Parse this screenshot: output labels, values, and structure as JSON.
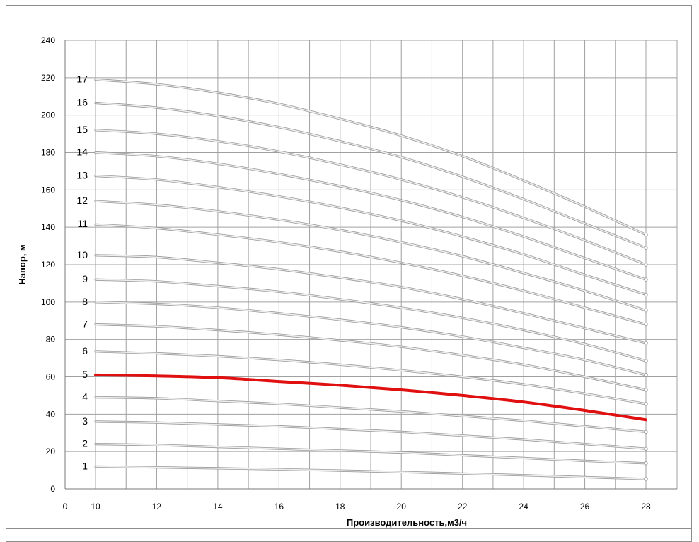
{
  "chart_data": {
    "type": "line",
    "xlabel": "Производительность,м3/ч",
    "ylabel": "Напор, м",
    "xlim": [
      0,
      28
    ],
    "ylim": [
      0,
      240
    ],
    "x_ticks": [
      0,
      10,
      12,
      14,
      16,
      18,
      20,
      22,
      24,
      26,
      28
    ],
    "y_ticks": [
      0,
      20,
      40,
      60,
      80,
      100,
      120,
      140,
      160,
      180,
      200,
      220,
      240
    ],
    "grid": true,
    "colors": {
      "curve": "#c8c8c8",
      "highlight": "#e01010",
      "grid": "#a0a0a0"
    },
    "x": [
      10,
      12,
      14,
      16,
      18,
      20,
      22,
      24,
      26,
      28
    ],
    "series": [
      {
        "name": "1",
        "values": [
          12,
          11.5,
          11,
          10.5,
          9.8,
          9,
          8.2,
          7.3,
          6.3,
          5.3
        ]
      },
      {
        "name": "2",
        "values": [
          24,
          23.5,
          22.5,
          21.5,
          20.5,
          19.5,
          18,
          16.5,
          15,
          13.7
        ]
      },
      {
        "name": "3",
        "values": [
          36,
          35.5,
          34.5,
          33.5,
          32,
          30.5,
          28.5,
          26.5,
          24,
          21.5
        ]
      },
      {
        "name": "4",
        "values": [
          49,
          48.5,
          47,
          45.5,
          43.5,
          41.5,
          39,
          36.5,
          33.5,
          30.5
        ]
      },
      {
        "name": "5",
        "values": [
          61,
          60.5,
          59.5,
          57.5,
          55.5,
          53,
          50,
          46.5,
          42,
          37
        ]
      },
      {
        "name": "6",
        "values": [
          73.5,
          72.5,
          71,
          69,
          66.5,
          63.5,
          60,
          56,
          51,
          45.5
        ]
      },
      {
        "name": "7",
        "values": [
          88,
          87,
          85,
          82.5,
          79.5,
          76,
          71.5,
          66.5,
          60,
          53
        ]
      },
      {
        "name": "8",
        "values": [
          100,
          99,
          97,
          94,
          90.5,
          86.5,
          81.5,
          75.5,
          69,
          61
        ]
      },
      {
        "name": "9",
        "values": [
          112,
          111,
          108.5,
          105.5,
          101.5,
          97,
          91.5,
          85,
          77.5,
          68.5
        ]
      },
      {
        "name": "10",
        "values": [
          125,
          124,
          121,
          117.5,
          113,
          108,
          101.5,
          94,
          86,
          78
        ]
      },
      {
        "name": "11",
        "values": [
          141.5,
          139.5,
          136,
          132,
          127,
          121,
          114,
          106,
          97,
          88
        ]
      },
      {
        "name": "12",
        "values": [
          154,
          152,
          148.5,
          144,
          138.5,
          132,
          124.5,
          115.5,
          106,
          95.5
        ]
      },
      {
        "name": "13",
        "values": [
          167.5,
          165.5,
          161.5,
          156.5,
          150.5,
          143.5,
          135,
          125.5,
          114.5,
          104
        ]
      },
      {
        "name": "14",
        "values": [
          180,
          178,
          174,
          168.5,
          162,
          154.5,
          145.5,
          135,
          123.5,
          112
        ]
      },
      {
        "name": "15",
        "values": [
          192,
          190,
          186,
          180.5,
          173.5,
          165.5,
          156,
          145,
          133,
          120
        ]
      },
      {
        "name": "16",
        "values": [
          206.5,
          204,
          199.5,
          193.5,
          186,
          177.5,
          167,
          155,
          142,
          129
        ]
      },
      {
        "name": "17",
        "values": [
          219,
          216.5,
          212,
          206,
          198,
          189,
          178,
          165,
          151,
          136
        ]
      }
    ],
    "highlighted_series": "5"
  }
}
